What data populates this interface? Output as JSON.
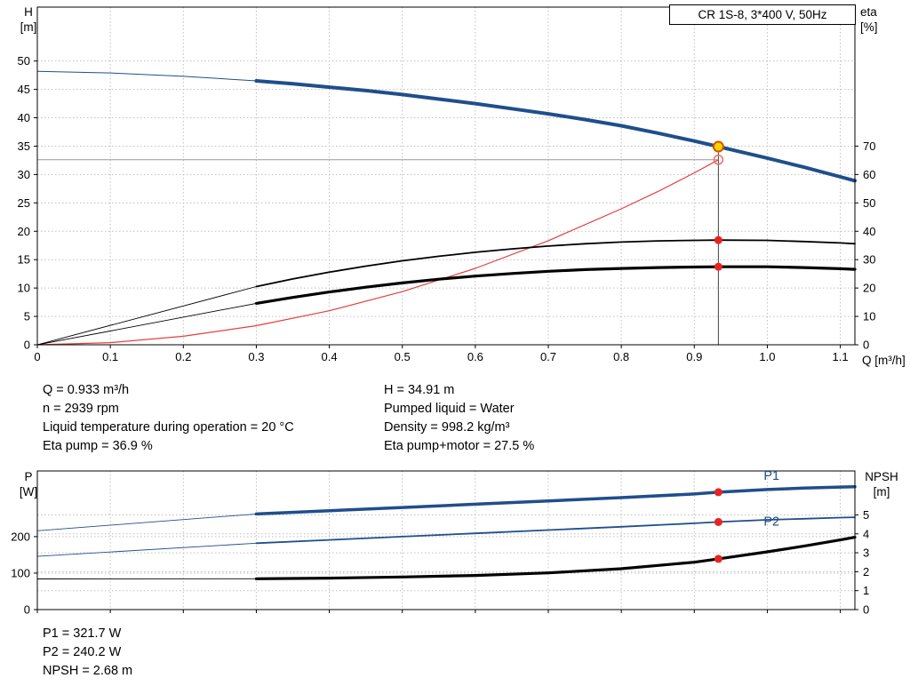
{
  "title_box": {
    "text": "CR 1S-8, 3*400 V, 50Hz"
  },
  "axis_corner_labels": {
    "h": [
      "H",
      "[m]"
    ],
    "eta": [
      "eta",
      "[%]"
    ],
    "q": "Q [m³/h]",
    "p": [
      "P",
      "[W]"
    ],
    "npsh": [
      "NPSH",
      "[m]"
    ]
  },
  "duty_info": {
    "left": [
      "Q = 0.933 m³/h",
      "n = 2939 rpm",
      "Liquid temperature during operation = 20 °C",
      "Eta pump = 36.9 %"
    ],
    "right": [
      "H = 34.91 m",
      "Pumped liquid = Water",
      "Density = 998.2 kg/m³",
      "Eta pump+motor = 27.5 %"
    ],
    "bottom": [
      "P1 = 321.7 W",
      "P2 = 240.2 W",
      "NPSH = 2.68 m"
    ]
  },
  "colors": {
    "curve_blue": "#1f4e8c",
    "curve_red": "#e2403c",
    "curve_black": "#000000",
    "marker_red": "#e8231f",
    "duty_fill": "#ffd400",
    "duty_ring": "#d45500",
    "grid": "#bfbfbf"
  },
  "chart_data": [
    {
      "type": "line",
      "title": "CR 1S-8, 3*400 V, 50Hz — QH and efficiency curves",
      "xlabel": "Q [m³/h]",
      "ylabel": "H [m] (left), eta [%] (right)",
      "x_axis": {
        "min": 0,
        "max": 1.12,
        "ticks": [
          [
            0,
            "0"
          ],
          [
            0.1,
            "0.1"
          ],
          [
            0.2,
            "0.2"
          ],
          [
            0.3,
            "0.3"
          ],
          [
            0.4,
            "0.4"
          ],
          [
            0.5,
            "0.5"
          ],
          [
            0.6,
            "0.6"
          ],
          [
            0.7,
            "0.7"
          ],
          [
            0.8,
            "0.8"
          ],
          [
            0.9,
            "0.9"
          ],
          [
            1.0,
            "1.0"
          ],
          [
            1.1,
            "1.1"
          ]
        ]
      },
      "y_left": {
        "min": 0,
        "max": 59.5,
        "ticks": [
          [
            0,
            "0"
          ],
          [
            5,
            "5"
          ],
          [
            10,
            "10"
          ],
          [
            15,
            "15"
          ],
          [
            20,
            "20"
          ],
          [
            25,
            "25"
          ],
          [
            30,
            "30"
          ],
          [
            35,
            "35"
          ],
          [
            40,
            "40"
          ],
          [
            45,
            "45"
          ],
          [
            50,
            "50"
          ]
        ],
        "grid": [
          5,
          10,
          15,
          20,
          25,
          30,
          35,
          40,
          45,
          50
        ]
      },
      "y_right": {
        "min": 0,
        "max": 119,
        "ticks": [
          [
            0,
            "0"
          ],
          [
            10,
            "10"
          ],
          [
            20,
            "20"
          ],
          [
            30,
            "30"
          ],
          [
            40,
            "40"
          ],
          [
            50,
            "50"
          ],
          [
            60,
            "60"
          ],
          [
            70,
            "70"
          ]
        ],
        "grid": []
      },
      "lines": [
        {
          "q1": 0.933,
          "v1": 0,
          "q2": 0.933,
          "v2": 34.91,
          "axis": "left",
          "color": "#444444",
          "w": 1
        },
        {
          "q1": 0,
          "v1": 32.6,
          "q2": 0.933,
          "v2": 32.6,
          "axis": "left",
          "color": "#999999",
          "w": 1
        }
      ],
      "series": [
        {
          "name": "system-curve",
          "axis": "left",
          "color": "#e2403c",
          "width": 1.2,
          "points": [
            [
              0,
              0
            ],
            [
              0.1,
              0.37
            ],
            [
              0.2,
              1.5
            ],
            [
              0.3,
              3.37
            ],
            [
              0.4,
              5.99
            ],
            [
              0.5,
              9.36
            ],
            [
              0.6,
              13.47
            ],
            [
              0.7,
              18.34
            ],
            [
              0.8,
              23.95
            ],
            [
              0.85,
              27.0
            ],
            [
              0.9,
              30.3
            ],
            [
              0.933,
              32.6
            ]
          ]
        },
        {
          "name": "eta-pump-curve",
          "axis": "right",
          "color": "#000000",
          "width": 1.8,
          "thin_width": 0.9,
          "thin": [
            [
              0,
              0
            ],
            [
              0.3,
              20.5
            ]
          ],
          "points": [
            [
              0.3,
              20.5
            ],
            [
              0.35,
              23.2
            ],
            [
              0.4,
              25.6
            ],
            [
              0.45,
              27.7
            ],
            [
              0.5,
              29.6
            ],
            [
              0.55,
              31.2
            ],
            [
              0.6,
              32.6
            ],
            [
              0.65,
              33.8
            ],
            [
              0.7,
              34.8
            ],
            [
              0.75,
              35.6
            ],
            [
              0.8,
              36.2
            ],
            [
              0.85,
              36.6
            ],
            [
              0.9,
              36.8
            ],
            [
              0.933,
              36.9
            ],
            [
              1.0,
              36.8
            ],
            [
              1.05,
              36.4
            ],
            [
              1.1,
              35.9
            ],
            [
              1.12,
              35.6
            ]
          ]
        },
        {
          "name": "eta-pump-motor-curve",
          "axis": "right",
          "color": "#000000",
          "width": 3.2,
          "thin_width": 0.9,
          "thin": [
            [
              0,
              0
            ],
            [
              0.3,
              14.6
            ]
          ],
          "points": [
            [
              0.3,
              14.6
            ],
            [
              0.35,
              16.7
            ],
            [
              0.4,
              18.6
            ],
            [
              0.45,
              20.3
            ],
            [
              0.5,
              21.8
            ],
            [
              0.55,
              23.1
            ],
            [
              0.6,
              24.2
            ],
            [
              0.65,
              25.1
            ],
            [
              0.7,
              25.9
            ],
            [
              0.75,
              26.5
            ],
            [
              0.8,
              26.9
            ],
            [
              0.85,
              27.2
            ],
            [
              0.9,
              27.4
            ],
            [
              0.933,
              27.5
            ],
            [
              1.0,
              27.5
            ],
            [
              1.05,
              27.2
            ],
            [
              1.1,
              26.8
            ],
            [
              1.12,
              26.6
            ]
          ]
        },
        {
          "name": "qh-curve",
          "axis": "left",
          "color": "#1f4e8c",
          "width": 4,
          "thin_width": 1,
          "thin": [
            [
              0,
              48.2
            ],
            [
              0.1,
              47.9
            ],
            [
              0.2,
              47.3
            ],
            [
              0.3,
              46.5
            ]
          ],
          "points": [
            [
              0.3,
              46.5
            ],
            [
              0.35,
              46.0
            ],
            [
              0.4,
              45.4
            ],
            [
              0.45,
              44.8
            ],
            [
              0.5,
              44.1
            ],
            [
              0.55,
              43.3
            ],
            [
              0.6,
              42.5
            ],
            [
              0.65,
              41.6
            ],
            [
              0.7,
              40.7
            ],
            [
              0.75,
              39.7
            ],
            [
              0.8,
              38.6
            ],
            [
              0.85,
              37.3
            ],
            [
              0.9,
              35.9
            ],
            [
              0.933,
              34.91
            ],
            [
              0.95,
              34.4
            ],
            [
              1.0,
              32.9
            ],
            [
              1.05,
              31.3
            ],
            [
              1.1,
              29.6
            ],
            [
              1.12,
              28.9
            ]
          ]
        }
      ],
      "markers": [
        {
          "name": "eta-pump-duty-dot",
          "q": 0.933,
          "v": 36.9,
          "axis": "right",
          "r": 4.5,
          "fill": "#e8231f"
        },
        {
          "name": "eta-pump-motor-duty-dot",
          "q": 0.933,
          "v": 27.5,
          "axis": "right",
          "r": 4.5,
          "fill": "#e8231f"
        },
        {
          "name": "system-curve-open-dot",
          "q": 0.933,
          "v": 32.6,
          "axis": "left",
          "r": 5,
          "fill": "none",
          "stroke": "#e8706c",
          "sw": 1.5
        },
        {
          "name": "duty-point",
          "q": 0.933,
          "v": 34.91,
          "axis": "left",
          "r": 5.5,
          "fill": "#ffd400",
          "stroke": "#d45500",
          "sw": 2
        }
      ],
      "annotations": []
    },
    {
      "type": "line",
      "title": "Power and NPSH curves",
      "xlabel": "Q [m³/h]",
      "ylabel": "P [W] (left), NPSH [m] (right)",
      "x_axis": {
        "min": 0,
        "max": 1.12,
        "ticks": [
          [
            0,
            ""
          ],
          [
            0.1,
            ""
          ],
          [
            0.2,
            ""
          ],
          [
            0.3,
            ""
          ],
          [
            0.4,
            ""
          ],
          [
            0.5,
            ""
          ],
          [
            0.6,
            ""
          ],
          [
            0.7,
            ""
          ],
          [
            0.8,
            ""
          ],
          [
            0.9,
            ""
          ],
          [
            1.0,
            ""
          ],
          [
            1.1,
            ""
          ]
        ]
      },
      "y_left": {
        "min": 0,
        "max": 380,
        "ticks": [
          [
            0,
            "0"
          ],
          [
            100,
            "100"
          ],
          [
            200,
            "200"
          ]
        ],
        "grid": [
          100,
          200
        ]
      },
      "y_right": {
        "min": 0,
        "max": 7.32,
        "ticks": [
          [
            0,
            "0"
          ],
          [
            1,
            "1"
          ],
          [
            2,
            "2"
          ],
          [
            3,
            "3"
          ],
          [
            4,
            "4"
          ],
          [
            5,
            "5"
          ]
        ],
        "grid": [
          1,
          2,
          3,
          4,
          5
        ]
      },
      "lines": [],
      "series": [
        {
          "name": "npsh-curve",
          "axis": "right",
          "color": "#000000",
          "width": 3.2,
          "thin_width": 0.9,
          "thin": [
            [
              0,
              1.62
            ],
            [
              0.3,
              1.63
            ]
          ],
          "points": [
            [
              0.3,
              1.63
            ],
            [
              0.4,
              1.66
            ],
            [
              0.5,
              1.72
            ],
            [
              0.6,
              1.8
            ],
            [
              0.7,
              1.94
            ],
            [
              0.8,
              2.16
            ],
            [
              0.9,
              2.5
            ],
            [
              0.933,
              2.68
            ],
            [
              1.0,
              3.05
            ],
            [
              1.05,
              3.35
            ],
            [
              1.1,
              3.68
            ],
            [
              1.12,
              3.82
            ]
          ]
        },
        {
          "name": "p2-curve",
          "axis": "left",
          "color": "#1f4e8c",
          "width": 1.8,
          "thin_width": 0.9,
          "thin": [
            [
              0,
              146
            ],
            [
              0.3,
              182
            ]
          ],
          "points": [
            [
              0.3,
              182
            ],
            [
              0.4,
              191
            ],
            [
              0.5,
              200
            ],
            [
              0.6,
              209
            ],
            [
              0.7,
              218
            ],
            [
              0.8,
              227
            ],
            [
              0.9,
              236.5
            ],
            [
              0.933,
              240.2
            ],
            [
              1.0,
              246
            ],
            [
              1.05,
              249
            ],
            [
              1.1,
              252
            ],
            [
              1.12,
              253
            ]
          ]
        },
        {
          "name": "p1-curve",
          "axis": "left",
          "color": "#1f4e8c",
          "width": 3.5,
          "thin_width": 0.9,
          "thin": [
            [
              0,
              216
            ],
            [
              0.3,
              262
            ]
          ],
          "points": [
            [
              0.3,
              262
            ],
            [
              0.4,
              271
            ],
            [
              0.5,
              280
            ],
            [
              0.6,
              289
            ],
            [
              0.7,
              298
            ],
            [
              0.8,
              307
            ],
            [
              0.9,
              317
            ],
            [
              0.933,
              321.7
            ],
            [
              1.0,
              329
            ],
            [
              1.05,
              333
            ],
            [
              1.1,
              336
            ],
            [
              1.12,
              337
            ]
          ]
        }
      ],
      "markers": [
        {
          "name": "p1-duty-dot",
          "q": 0.933,
          "v": 321.7,
          "axis": "left",
          "r": 4.5,
          "fill": "#e8231f"
        },
        {
          "name": "p2-duty-dot",
          "q": 0.933,
          "v": 240.2,
          "axis": "left",
          "r": 4.5,
          "fill": "#e8231f"
        },
        {
          "name": "npsh-duty-dot",
          "q": 0.933,
          "v": 2.68,
          "axis": "right",
          "r": 4.5,
          "fill": "#e8231f"
        }
      ],
      "annotations": [
        {
          "text": "P1",
          "q": 0.995,
          "v": 356,
          "axis": "left",
          "color": "#1f4e8c"
        },
        {
          "text": "P2",
          "q": 0.995,
          "v": 230,
          "axis": "left",
          "color": "#1f4e8c"
        }
      ]
    }
  ]
}
